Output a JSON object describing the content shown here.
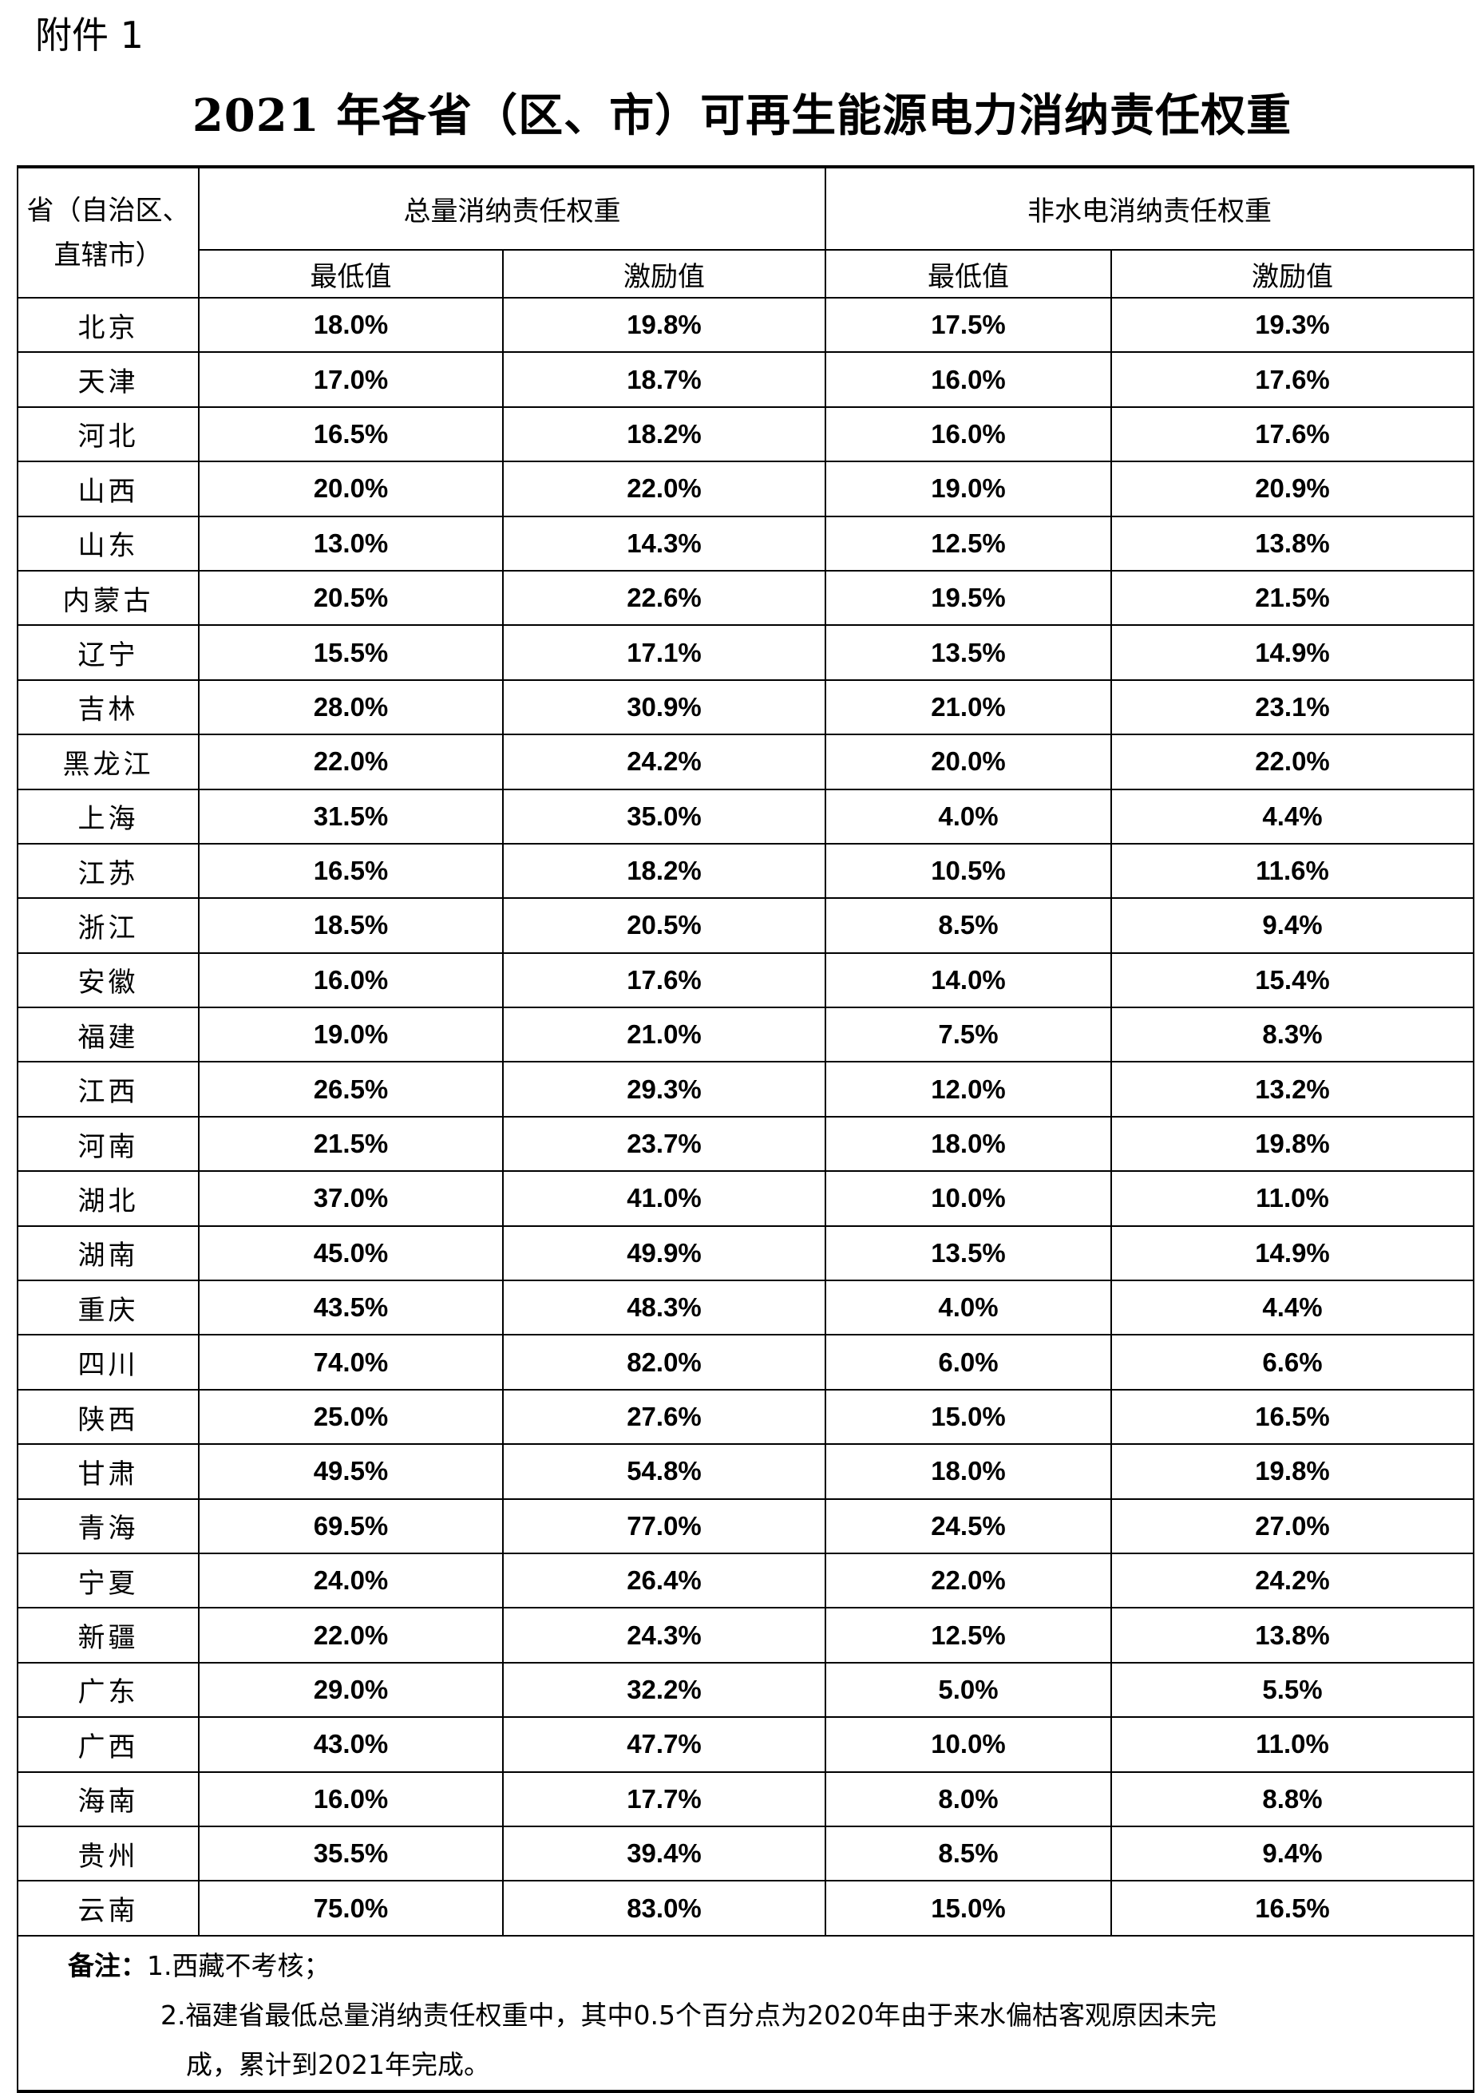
{
  "attachment_label": "附件 1",
  "title": "2021 年各省（区、市）可再生能源电力消纳责任权重",
  "table": {
    "region_header": "省（自治区、直辖市）",
    "group_headers": [
      "总量消纳责任权重",
      "非水电消纳责任权重"
    ],
    "sub_headers": [
      "最低值",
      "激励值",
      "最低值",
      "激励值"
    ],
    "rows": [
      [
        "北京",
        "18.0%",
        "19.8%",
        "17.5%",
        "19.3%"
      ],
      [
        "天津",
        "17.0%",
        "18.7%",
        "16.0%",
        "17.6%"
      ],
      [
        "河北",
        "16.5%",
        "18.2%",
        "16.0%",
        "17.6%"
      ],
      [
        "山西",
        "20.0%",
        "22.0%",
        "19.0%",
        "20.9%"
      ],
      [
        "山东",
        "13.0%",
        "14.3%",
        "12.5%",
        "13.8%"
      ],
      [
        "内蒙古",
        "20.5%",
        "22.6%",
        "19.5%",
        "21.5%"
      ],
      [
        "辽宁",
        "15.5%",
        "17.1%",
        "13.5%",
        "14.9%"
      ],
      [
        "吉林",
        "28.0%",
        "30.9%",
        "21.0%",
        "23.1%"
      ],
      [
        "黑龙江",
        "22.0%",
        "24.2%",
        "20.0%",
        "22.0%"
      ],
      [
        "上海",
        "31.5%",
        "35.0%",
        "4.0%",
        "4.4%"
      ],
      [
        "江苏",
        "16.5%",
        "18.2%",
        "10.5%",
        "11.6%"
      ],
      [
        "浙江",
        "18.5%",
        "20.5%",
        "8.5%",
        "9.4%"
      ],
      [
        "安徽",
        "16.0%",
        "17.6%",
        "14.0%",
        "15.4%"
      ],
      [
        "福建",
        "19.0%",
        "21.0%",
        "7.5%",
        "8.3%"
      ],
      [
        "江西",
        "26.5%",
        "29.3%",
        "12.0%",
        "13.2%"
      ],
      [
        "河南",
        "21.5%",
        "23.7%",
        "18.0%",
        "19.8%"
      ],
      [
        "湖北",
        "37.0%",
        "41.0%",
        "10.0%",
        "11.0%"
      ],
      [
        "湖南",
        "45.0%",
        "49.9%",
        "13.5%",
        "14.9%"
      ],
      [
        "重庆",
        "43.5%",
        "48.3%",
        "4.0%",
        "4.4%"
      ],
      [
        "四川",
        "74.0%",
        "82.0%",
        "6.0%",
        "6.6%"
      ],
      [
        "陕西",
        "25.0%",
        "27.6%",
        "15.0%",
        "16.5%"
      ],
      [
        "甘肃",
        "49.5%",
        "54.8%",
        "18.0%",
        "19.8%"
      ],
      [
        "青海",
        "69.5%",
        "77.0%",
        "24.5%",
        "27.0%"
      ],
      [
        "宁夏",
        "24.0%",
        "26.4%",
        "22.0%",
        "24.2%"
      ],
      [
        "新疆",
        "22.0%",
        "24.3%",
        "12.5%",
        "13.8%"
      ],
      [
        "广东",
        "29.0%",
        "32.2%",
        "5.0%",
        "5.5%"
      ],
      [
        "广西",
        "43.0%",
        "47.7%",
        "10.0%",
        "11.0%"
      ],
      [
        "海南",
        "16.0%",
        "17.7%",
        "8.0%",
        "8.8%"
      ],
      [
        "贵州",
        "35.5%",
        "39.4%",
        "8.5%",
        "9.4%"
      ],
      [
        "云南",
        "75.0%",
        "83.0%",
        "15.0%",
        "16.5%"
      ]
    ]
  },
  "notes": {
    "label": "备注：",
    "item1": "1.西藏不考核；",
    "item2_line1": "2.福建省最低总量消纳责任权重中，其中0.5个百分点为2020年由于来水偏枯客观原因未完",
    "item2_line2": "成，累计到2021年完成。"
  }
}
